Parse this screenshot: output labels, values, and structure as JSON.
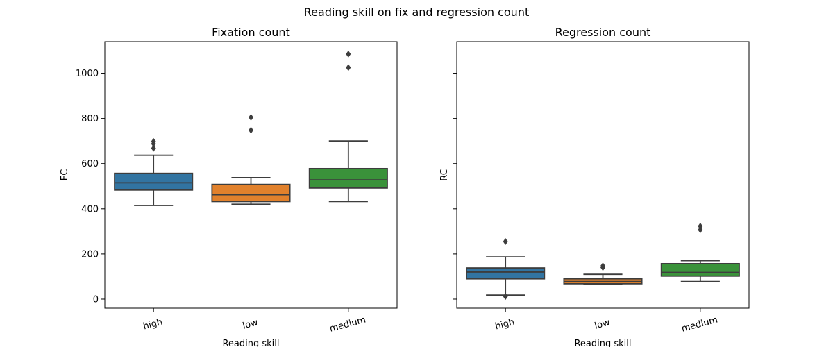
{
  "figure": {
    "suptitle": "Reading skill on fix and regression count"
  },
  "colors": {
    "high": "#3274a1",
    "low": "#e1812c",
    "medium": "#3a923a",
    "line": "#3d3d3d"
  },
  "chart_data": [
    {
      "type": "box",
      "title": "Fixation count",
      "xlabel": "Reading skill",
      "ylabel": "FC",
      "ylim": [
        -40,
        1140
      ],
      "yticks": [
        0,
        200,
        400,
        600,
        800,
        1000
      ],
      "yticklabels": [
        "0",
        "200",
        "400",
        "600",
        "800",
        "1000"
      ],
      "categories": [
        "high",
        "low",
        "medium"
      ],
      "boxes": [
        {
          "category": "high",
          "whisker_low": 415,
          "q1": 483,
          "median": 515,
          "q3": 557,
          "whisker_high": 637,
          "outliers": [
            668,
            688,
            698
          ]
        },
        {
          "category": "low",
          "whisker_low": 420,
          "q1": 432,
          "median": 462,
          "q3": 508,
          "whisker_high": 538,
          "outliers": [
            748,
            805
          ]
        },
        {
          "category": "medium",
          "whisker_low": 432,
          "q1": 492,
          "median": 528,
          "q3": 578,
          "whisker_high": 700,
          "outliers": [
            1025,
            1085
          ]
        }
      ]
    },
    {
      "type": "box",
      "title": "Regression count",
      "xlabel": "Reading skill",
      "ylabel": "RC",
      "ylim": [
        -40,
        1140
      ],
      "yticks": [
        0,
        200,
        400,
        600,
        800,
        1000
      ],
      "yticklabels": [
        "",
        "",
        "",
        "",
        "",
        ""
      ],
      "categories": [
        "high",
        "low",
        "medium"
      ],
      "boxes": [
        {
          "category": "high",
          "whisker_low": 18,
          "q1": 90,
          "median": 120,
          "q3": 138,
          "whisker_high": 187,
          "outliers": [
            12,
            255
          ]
        },
        {
          "category": "low",
          "whisker_low": 64,
          "q1": 68,
          "median": 78,
          "q3": 90,
          "whisker_high": 110,
          "outliers": [
            140,
            147
          ]
        },
        {
          "category": "medium",
          "whisker_low": 78,
          "q1": 102,
          "median": 118,
          "q3": 157,
          "whisker_high": 170,
          "outliers": [
            307,
            323
          ]
        }
      ]
    }
  ]
}
